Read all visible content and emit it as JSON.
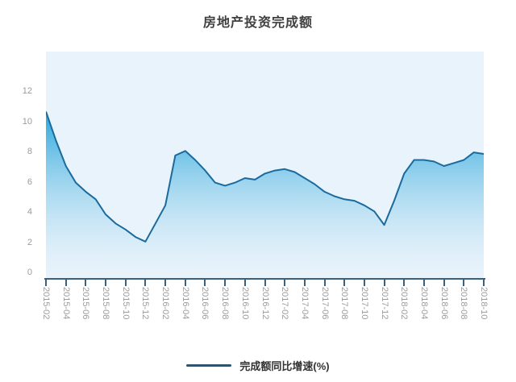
{
  "chart_data": {
    "type": "area",
    "title": "房地产投资完成额",
    "legend_position": "bottom",
    "grid": false,
    "ylim": [
      0,
      15
    ],
    "y_ticks": [
      0,
      2,
      4,
      6,
      8,
      10,
      12
    ],
    "categories": [
      "2015-02",
      "2015-03",
      "2015-04",
      "2015-05",
      "2015-06",
      "2015-07",
      "2015-08",
      "2015-09",
      "2015-10",
      "2015-11",
      "2015-12",
      "2016-01",
      "2016-02",
      "2016-03",
      "2016-04",
      "2016-05",
      "2016-06",
      "2016-07",
      "2016-08",
      "2016-09",
      "2016-10",
      "2016-11",
      "2016-12",
      "2017-01",
      "2017-02",
      "2017-03",
      "2017-04",
      "2017-05",
      "2017-06",
      "2017-07",
      "2017-08",
      "2017-09",
      "2017-10",
      "2017-11",
      "2017-12",
      "2018-01",
      "2018-02",
      "2018-03",
      "2018-04",
      "2018-05",
      "2018-06",
      "2018-07",
      "2018-08",
      "2018-09",
      "2018-10"
    ],
    "x_tick_labels": [
      "2015-02",
      "2015-04",
      "2015-06",
      "2015-08",
      "2015-10",
      "2015-12",
      "2016-02",
      "2016-04",
      "2016-06",
      "2016-08",
      "2016-10",
      "2016-12",
      "2017-02",
      "2017-04",
      "2017-06",
      "2017-08",
      "2017-10",
      "2017-12",
      "2018-02",
      "2018-04",
      "2018-06",
      "2018-08",
      "2018-10"
    ],
    "series": [
      {
        "name": "完成额同比增速(%)",
        "values": [
          10.8,
          8.9,
          7.2,
          6.1,
          5.5,
          5.0,
          4.0,
          3.4,
          3.0,
          2.5,
          2.2,
          3.4,
          4.6,
          7.9,
          8.2,
          7.6,
          6.9,
          6.1,
          5.9,
          6.1,
          6.4,
          6.3,
          6.7,
          6.9,
          7.0,
          6.8,
          6.4,
          6.0,
          5.5,
          5.2,
          5.0,
          4.9,
          4.6,
          4.2,
          3.3,
          4.9,
          6.7,
          7.6,
          7.6,
          7.5,
          7.2,
          7.4,
          7.6,
          8.1,
          8.0
        ]
      }
    ],
    "colors": {
      "line": "#1a6a9d",
      "area_gradient_top": "#29a6db",
      "area_gradient_bottom": "rgba(233,243,251,0.25)",
      "plot_background": "#e9f3fb",
      "axis": "#3a627f",
      "axis_label": "#9b9b9b",
      "title": "#404040",
      "legend_marker": "#2d536e",
      "legend_text": "#333333"
    }
  }
}
